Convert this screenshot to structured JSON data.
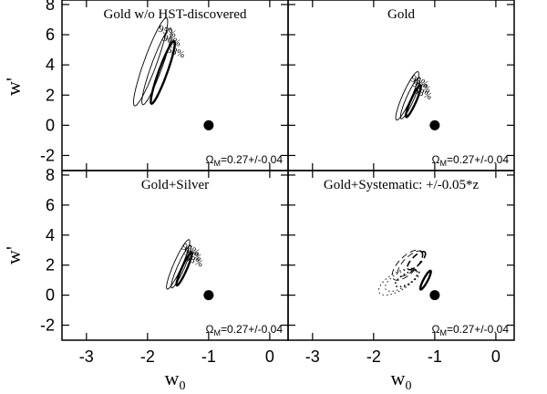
{
  "chart_data": {
    "type": "contour",
    "xlabel_main": "w",
    "xlabel_sub": "0",
    "ylabel": "w'",
    "xlim": [
      -3.4,
      0.3
    ],
    "ylim": [
      -3,
      8.3
    ],
    "x_ticks": [
      -3,
      -2,
      -1,
      0
    ],
    "y_ticks": [
      -2,
      0,
      2,
      4,
      6,
      8
    ],
    "reference_point": {
      "x": -1,
      "y": 0
    },
    "panels": [
      {
        "title": "Gold w/o HST-discovered",
        "annotation_main": "Ω",
        "annotation_sub": "M",
        "annotation_value": "=0.27+/-0.04",
        "contours": [
          {
            "level": "68%",
            "label": "68%",
            "center": [
              -1.75,
              3.5
            ],
            "semi_major": 2.2,
            "semi_minor": 0.28,
            "angle_deg": -70
          },
          {
            "level": "90%",
            "label": "90%",
            "center": [
              -1.85,
              3.9
            ],
            "semi_major": 2.7,
            "semi_minor": 0.36,
            "angle_deg": -70
          },
          {
            "level": "95%",
            "label": "95%",
            "center": [
              -1.95,
              4.2
            ],
            "semi_major": 3.1,
            "semi_minor": 0.42,
            "angle_deg": -70
          }
        ]
      },
      {
        "title": "Gold",
        "annotation_main": "Ω",
        "annotation_sub": "M",
        "annotation_value": "=0.27+/-0.04",
        "contours": [
          {
            "level": "68%",
            "label": "68%",
            "center": [
              -1.35,
              1.6
            ],
            "semi_major": 1.15,
            "semi_minor": 0.18,
            "angle_deg": -66
          },
          {
            "level": "90%",
            "label": "90%",
            "center": [
              -1.4,
              1.8
            ],
            "semi_major": 1.5,
            "semi_minor": 0.25,
            "angle_deg": -66
          },
          {
            "level": "95%",
            "label": "95%",
            "center": [
              -1.45,
              1.95
            ],
            "semi_major": 1.75,
            "semi_minor": 0.3,
            "angle_deg": -66
          }
        ]
      },
      {
        "title": "Gold+Silver",
        "annotation_main": "Ω",
        "annotation_sub": "M",
        "annotation_value": "=0.27+/-0.04",
        "contours": [
          {
            "level": "68%",
            "label": "68%",
            "center": [
              -1.4,
              1.75
            ],
            "semi_major": 1.2,
            "semi_minor": 0.17,
            "angle_deg": -66
          },
          {
            "level": "90%",
            "label": "90%",
            "center": [
              -1.45,
              1.9
            ],
            "semi_major": 1.55,
            "semi_minor": 0.23,
            "angle_deg": -66
          },
          {
            "level": "95%",
            "label": "95%",
            "center": [
              -1.5,
              2.05
            ],
            "semi_major": 1.8,
            "semi_minor": 0.28,
            "angle_deg": -66
          }
        ]
      },
      {
        "title": "Gold+Systematic: +/-0.05*z",
        "annotation_main": "Ω",
        "annotation_sub": "M",
        "annotation_value": "=0.27+/-0.04",
        "contours": [
          {
            "level": "68%",
            "style": "solid",
            "center": [
              -1.15,
              1.0
            ],
            "semi_major": 0.7,
            "semi_minor": 0.14,
            "angle_deg": -62
          },
          {
            "level": "68%",
            "style": "dashed",
            "center": [
              -1.3,
              2.3
            ],
            "semi_major": 0.8,
            "semi_minor": 0.3,
            "angle_deg": -45
          },
          {
            "level": "90%",
            "style": "dashed",
            "center": [
              -1.4,
              2.1
            ],
            "semi_major": 1.1,
            "semi_minor": 0.45,
            "angle_deg": -45
          },
          {
            "level": "95%",
            "style": "dashed",
            "center": [
              -1.45,
              2.0
            ],
            "semi_major": 1.3,
            "semi_minor": 0.58,
            "angle_deg": -45
          },
          {
            "level": "68%",
            "style": "dotted",
            "center": [
              -1.45,
              1.1
            ],
            "semi_major": 0.9,
            "semi_minor": 0.35,
            "angle_deg": -30
          },
          {
            "level": "90%",
            "style": "dotted",
            "center": [
              -1.55,
              1.0
            ],
            "semi_major": 1.2,
            "semi_minor": 0.5,
            "angle_deg": -30
          },
          {
            "level": "95%",
            "style": "dotted",
            "center": [
              -1.6,
              0.9
            ],
            "semi_major": 1.45,
            "semi_minor": 0.6,
            "angle_deg": -30
          }
        ]
      }
    ]
  }
}
